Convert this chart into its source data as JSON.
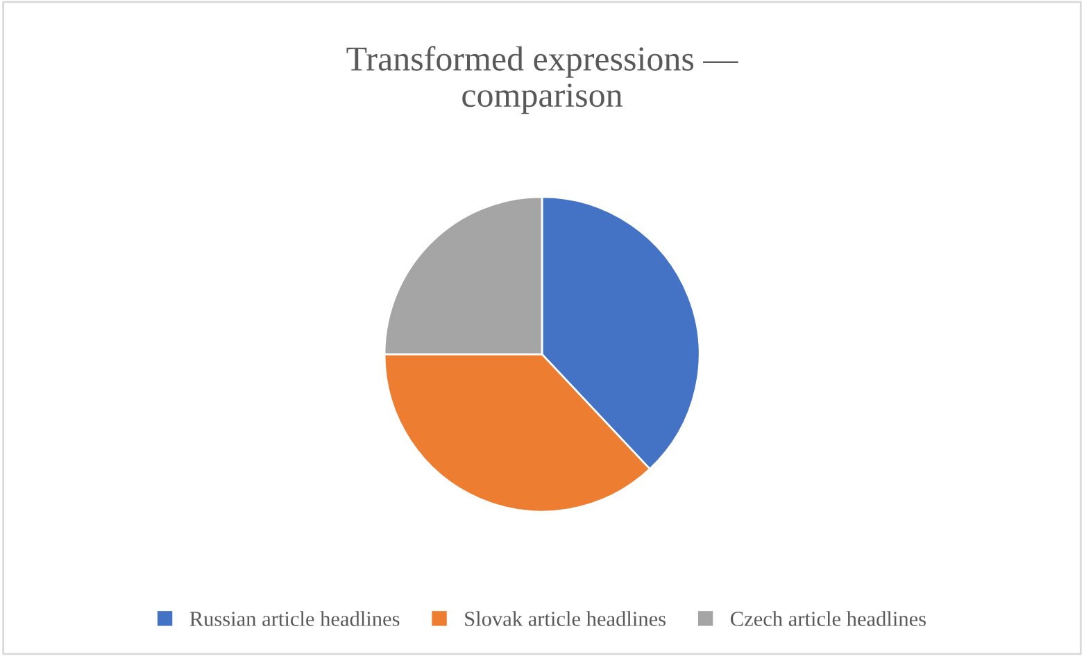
{
  "chart_data": {
    "type": "pie",
    "title": "Transformed expressions —\ncomparison",
    "categories": [
      "Russian article headlines",
      "Slovak article headlines",
      "Czech article headlines"
    ],
    "values": [
      38,
      37,
      25
    ],
    "colors": [
      "#4472c4",
      "#ed7d31",
      "#a5a5a5"
    ],
    "legend": "bottom"
  }
}
